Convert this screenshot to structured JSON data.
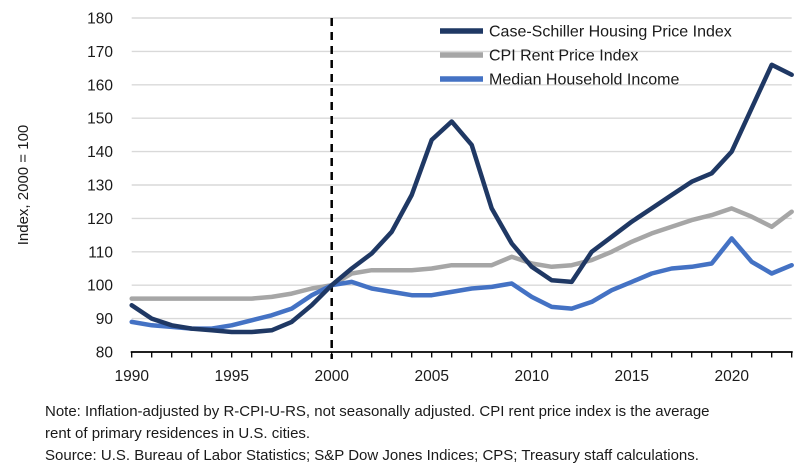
{
  "chart_data": {
    "type": "line",
    "title": "",
    "xlabel": "",
    "ylabel": "Index, 2000 = 100",
    "ylim": [
      80,
      180
    ],
    "xlim": [
      1990,
      2023
    ],
    "y_tick_step": 10,
    "x_tick_labels": [
      1990,
      1995,
      2000,
      2005,
      2010,
      2015,
      2020
    ],
    "x_minor_tick_every_years": 1,
    "grid": "horizontal-only",
    "legend_position": "top-right-inside",
    "vline": {
      "x": 2000,
      "style": "dashed",
      "color": "#000000"
    },
    "x": [
      1990,
      1991,
      1992,
      1993,
      1994,
      1995,
      1996,
      1997,
      1998,
      1999,
      2000,
      2001,
      2002,
      2003,
      2004,
      2005,
      2006,
      2007,
      2008,
      2009,
      2010,
      2011,
      2012,
      2013,
      2014,
      2015,
      2016,
      2017,
      2018,
      2019,
      2020,
      2021,
      2022,
      2023
    ],
    "series": [
      {
        "name": "Case-Schiller Housing Price Index",
        "color": "#1F3864",
        "values": [
          94,
          90,
          88,
          87,
          86.5,
          86,
          86,
          86.5,
          89,
          94,
          100,
          105,
          109.5,
          116,
          127,
          143.5,
          149,
          142,
          123,
          112.5,
          105.5,
          101.5,
          101,
          110,
          114.5,
          119,
          123,
          127,
          131,
          133.5,
          140,
          153,
          166,
          163
        ]
      },
      {
        "name": "CPI Rent Price Index",
        "color": "#A6A6A6",
        "values": [
          96,
          96,
          96,
          96,
          96,
          96,
          96,
          96.5,
          97.5,
          99,
          100,
          103.5,
          104.5,
          104.5,
          104.5,
          105,
          106,
          106,
          106,
          108.5,
          106.5,
          105.5,
          106,
          107.5,
          110,
          113,
          115.5,
          117.5,
          119.5,
          121,
          123,
          120.5,
          117.5,
          122
        ]
      },
      {
        "name": "Median Household Income",
        "color": "#4472C4",
        "values": [
          89,
          88,
          87.5,
          87,
          87,
          88,
          89.5,
          91,
          93,
          97,
          100,
          101,
          99,
          98,
          97,
          97,
          98,
          99,
          99.5,
          100.5,
          96.5,
          93.5,
          93,
          95,
          98.5,
          101,
          103.5,
          105,
          105.5,
          106.5,
          114,
          107,
          103.5,
          106
        ]
      }
    ]
  },
  "axis": {
    "y_tick_values": [
      80,
      90,
      100,
      110,
      120,
      130,
      140,
      150,
      160,
      170,
      180
    ]
  },
  "note": {
    "line1": "Note: Inflation-adjusted by R-CPI-U-RS, not seasonally adjusted. CPI rent price index is the average",
    "line2": "rent of primary residences in U.S. cities.",
    "source": "Source: U.S. Bureau of Labor Statistics; S&P Dow Jones Indices; CPS; Treasury staff calculations."
  },
  "colors": {
    "gridline": "#D9D9D9",
    "axis": "#000000",
    "text": "#1A1A1A",
    "case_shiller": "#1F3864",
    "cpi_rent": "#A6A6A6",
    "median_income": "#4472C4"
  }
}
